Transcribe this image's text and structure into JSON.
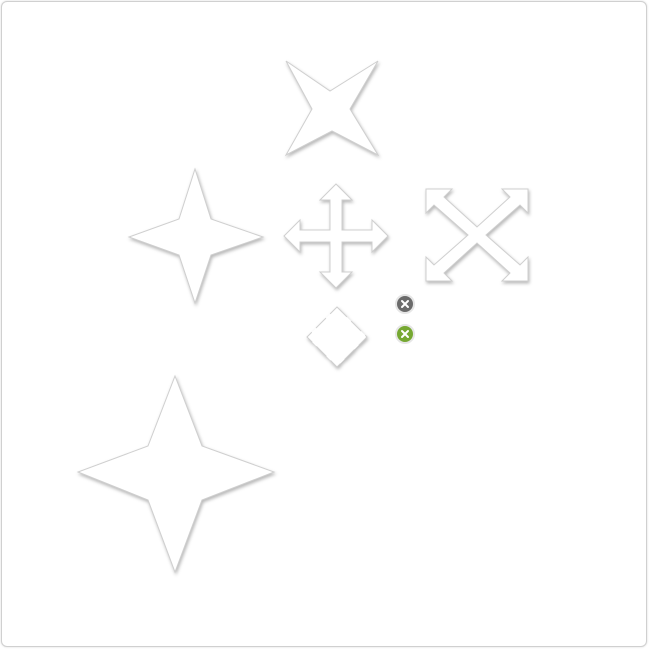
{
  "canvas": {
    "background": "#ffffff",
    "border_color": "#d0d0d0"
  },
  "shapes": [
    {
      "name": "four-point-star-x-icon"
    },
    {
      "name": "four-point-star-small-icon"
    },
    {
      "name": "four-way-arrow-move-icon"
    },
    {
      "name": "diagonal-expand-arrows-icon"
    },
    {
      "name": "diamond-dashed-icon"
    },
    {
      "name": "four-point-star-large-icon"
    }
  ],
  "controls": {
    "close_gray": {
      "icon": "close-icon",
      "color": "#6b6b6b"
    },
    "close_green": {
      "icon": "close-icon",
      "color": "#76a832"
    }
  },
  "colors": {
    "shape_fill": "#ffffff",
    "shape_stroke": "#cfcfcf"
  }
}
